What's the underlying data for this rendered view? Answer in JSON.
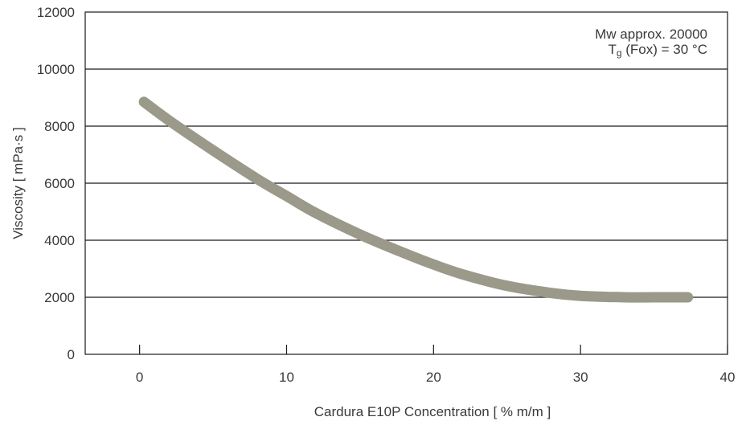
{
  "chart_data": {
    "type": "line",
    "title": "",
    "xlabel": "Cardura E10P Concentration [ % m/m ]",
    "ylabel": "Viscosity [ mPa·s ]",
    "xlim": [
      -3.7,
      40
    ],
    "ylim": [
      0,
      12000
    ],
    "xticks": [
      0,
      10,
      20,
      30,
      40
    ],
    "yticks": [
      0,
      2000,
      4000,
      6000,
      8000,
      10000,
      12000
    ],
    "grid": "horizontal",
    "legend": "none",
    "annotation": {
      "line1": "Mw approx. 20000",
      "line2_T": "T",
      "line2_sub": "g",
      "line2_rest": " (Fox) = 30 °C"
    },
    "series": [
      {
        "x": [
          0.3,
          2,
          5,
          8,
          10,
          12,
          15,
          18,
          20,
          22,
          25,
          28,
          30,
          33,
          35,
          37.3
        ],
        "y": [
          8850,
          8200,
          7150,
          6150,
          5550,
          4950,
          4200,
          3550,
          3150,
          2800,
          2400,
          2150,
          2050,
          2000,
          2000,
          2000
        ],
        "color": "#9b9a8a"
      }
    ]
  }
}
